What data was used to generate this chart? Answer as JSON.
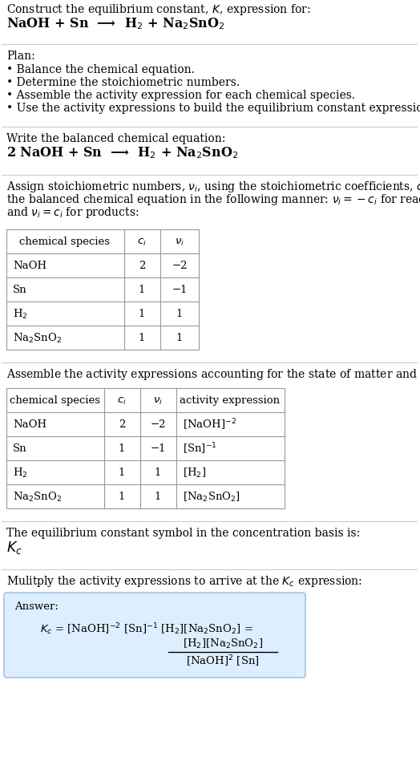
{
  "title_line1": "Construct the equilibrium constant, $K$, expression for:",
  "title_line2": "NaOH + Sn  ⟶  H$_2$ + Na$_2$SnO$_2$",
  "plan_header": "Plan:",
  "plan_items": [
    "• Balance the chemical equation.",
    "• Determine the stoichiometric numbers.",
    "• Assemble the activity expression for each chemical species.",
    "• Use the activity expressions to build the equilibrium constant expression."
  ],
  "balanced_header": "Write the balanced chemical equation:",
  "balanced_eq": "2 NaOH + Sn  ⟶  H$_2$ + Na$_2$SnO$_2$",
  "stoich_intro_lines": [
    "Assign stoichiometric numbers, $\\nu_i$, using the stoichiometric coefficients, $c_i$, from",
    "the balanced chemical equation in the following manner: $\\nu_i = -c_i$ for reactants",
    "and $\\nu_i = c_i$ for products:"
  ],
  "table1_headers": [
    "chemical species",
    "$c_i$",
    "$\\nu_i$"
  ],
  "table1_rows": [
    [
      "NaOH",
      "2",
      "−2"
    ],
    [
      "Sn",
      "1",
      "−1"
    ],
    [
      "H$_2$",
      "1",
      "1"
    ],
    [
      "Na$_2$SnO$_2$",
      "1",
      "1"
    ]
  ],
  "activity_intro": "Assemble the activity expressions accounting for the state of matter and $\\nu_i$:",
  "table2_headers": [
    "chemical species",
    "$c_i$",
    "$\\nu_i$",
    "activity expression"
  ],
  "table2_rows": [
    [
      "NaOH",
      "2",
      "−2",
      "[NaOH]$^{-2}$"
    ],
    [
      "Sn",
      "1",
      "−1",
      "[Sn]$^{-1}$"
    ],
    [
      "H$_2$",
      "1",
      "1",
      "[H$_2$]"
    ],
    [
      "Na$_2$SnO$_2$",
      "1",
      "1",
      "[Na$_2$SnO$_2$]"
    ]
  ],
  "kc_symbol_text": "The equilibrium constant symbol in the concentration basis is:",
  "kc_symbol": "$K_c$",
  "multiply_text": "Mulitply the activity expressions to arrive at the $K_c$ expression:",
  "answer_label": "Answer:",
  "bg_color": "#ffffff",
  "text_color": "#000000",
  "answer_box_color": "#ddeeff",
  "answer_box_border": "#99bbdd",
  "font_size": 10.5,
  "small_font": 9.5
}
